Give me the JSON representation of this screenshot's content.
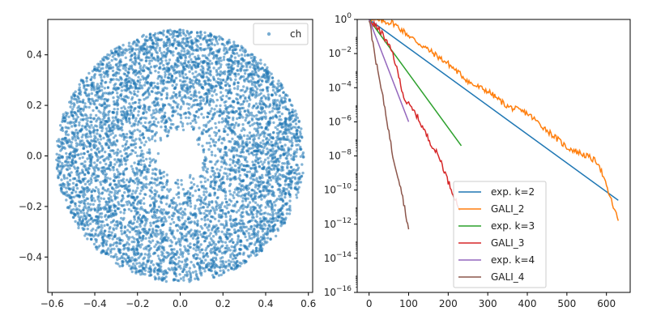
{
  "chart_data": [
    {
      "type": "scatter",
      "title": "",
      "xlabel": "",
      "ylabel": "",
      "xlim": [
        -0.62,
        0.62
      ],
      "ylim": [
        -0.54,
        0.54
      ],
      "x_ticks": [
        -0.6,
        -0.4,
        -0.2,
        0.0,
        0.2,
        0.4,
        0.6
      ],
      "x_tick_labels": [
        "−0.6",
        "−0.4",
        "−0.2",
        "0.0",
        "0.2",
        "0.4",
        "0.6"
      ],
      "y_ticks": [
        -0.4,
        -0.2,
        0.0,
        0.2,
        0.4
      ],
      "y_tick_labels": [
        "−0.4",
        "−0.2",
        "0.0",
        "0.2",
        "0.4"
      ],
      "grid": false,
      "legend_position": "top-right",
      "color": "#1f77b4",
      "series": [
        {
          "name": "ch",
          "description": "annular ring of points",
          "outer_radius_x": 0.58,
          "outer_radius_y": 0.5,
          "inner_hole_radius_x": 0.04,
          "inner_hole_radius_y": 0.05,
          "point_count": 6000
        }
      ]
    },
    {
      "type": "line",
      "title": "",
      "xlabel": "",
      "ylabel": "",
      "xlim": [
        -30,
        660
      ],
      "ylim_log10": [
        -16,
        0
      ],
      "y_scale": "log",
      "x_ticks": [
        0,
        100,
        200,
        300,
        400,
        500,
        600
      ],
      "x_tick_labels": [
        "0",
        "100",
        "200",
        "300",
        "400",
        "500",
        "600"
      ],
      "y_ticks_log10": [
        -16,
        -14,
        -12,
        -10,
        -8,
        -6,
        -4,
        -2,
        0
      ],
      "y_tick_exponents": [
        "−16",
        "−14",
        "−12",
        "−10",
        "−8",
        "−6",
        "−4",
        "−2",
        "0"
      ],
      "y_tick_base": "10",
      "grid": false,
      "legend_position": "lower-center",
      "series": [
        {
          "name": "exp. k=2",
          "color": "#1f77b4",
          "kind": "exp",
          "x": [
            0,
            630
          ],
          "log10_y": [
            0,
            -10.6
          ]
        },
        {
          "name": "GALI_2",
          "color": "#ff7f0e",
          "kind": "noisy",
          "x": [
            0,
            60,
            120,
            200,
            260,
            300,
            350,
            400,
            450,
            500,
            550,
            580,
            600,
            630
          ],
          "log10_y": [
            0,
            -0.2,
            -1.3,
            -2.6,
            -3.8,
            -4.2,
            -5.1,
            -5.5,
            -6.5,
            -7.5,
            -8.0,
            -8.4,
            -9.8,
            -11.8
          ]
        },
        {
          "name": "exp. k=3",
          "color": "#2ca02c",
          "kind": "exp",
          "x": [
            0,
            233
          ],
          "log10_y": [
            0,
            -7.4
          ]
        },
        {
          "name": "GALI_3",
          "color": "#d62728",
          "kind": "noisy",
          "x": [
            0,
            30,
            60,
            90,
            120,
            150,
            180,
            200,
            230
          ],
          "log10_y": [
            0,
            -0.7,
            -2.0,
            -4.7,
            -5.6,
            -7.0,
            -8.2,
            -9.5,
            -11.2
          ]
        },
        {
          "name": "exp. k=4",
          "color": "#9467bd",
          "kind": "exp",
          "x": [
            0,
            100
          ],
          "log10_y": [
            0,
            -6.0
          ]
        },
        {
          "name": "GALI_4",
          "color": "#8c564b",
          "kind": "noisy",
          "x": [
            0,
            20,
            40,
            60,
            80,
            100
          ],
          "log10_y": [
            0,
            -2.8,
            -5.2,
            -8.0,
            -9.8,
            -12.3
          ]
        }
      ]
    }
  ]
}
